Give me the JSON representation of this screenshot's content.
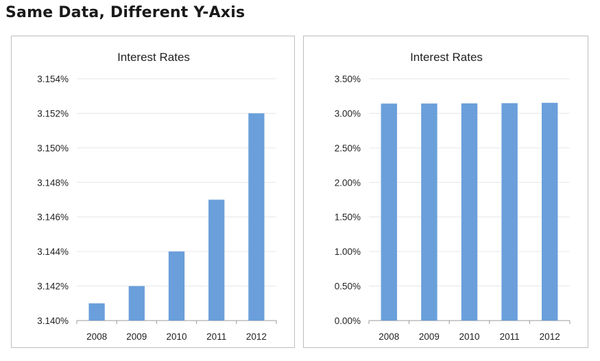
{
  "page": {
    "title": "Same Data, Different Y-Axis"
  },
  "chart_data": [
    {
      "type": "bar",
      "title": "Interest Rates",
      "categories": [
        "2008",
        "2009",
        "2010",
        "2011",
        "2012"
      ],
      "values": [
        3.141,
        3.142,
        3.144,
        3.147,
        3.152
      ],
      "ylim": [
        3.14,
        3.154
      ],
      "yticks": [
        3.14,
        3.142,
        3.144,
        3.146,
        3.148,
        3.15,
        3.152,
        3.154
      ],
      "ytick_labels": [
        "3.140%",
        "3.142%",
        "3.144%",
        "3.146%",
        "3.148%",
        "3.150%",
        "3.152%",
        "3.154%"
      ],
      "xlabel": "",
      "ylabel": "",
      "grid": true,
      "legend": "none",
      "bar_color": "#6a9fdb"
    },
    {
      "type": "bar",
      "title": "Interest Rates",
      "categories": [
        "2008",
        "2009",
        "2010",
        "2011",
        "2012"
      ],
      "values": [
        3.141,
        3.142,
        3.144,
        3.147,
        3.152
      ],
      "ylim": [
        0,
        3.5
      ],
      "yticks": [
        0,
        0.5,
        1,
        1.5,
        2,
        2.5,
        3,
        3.5
      ],
      "ytick_labels": [
        "0.00%",
        "0.50%",
        "1.00%",
        "1.50%",
        "2.00%",
        "2.50%",
        "3.00%",
        "3.50%"
      ],
      "xlabel": "",
      "ylabel": "",
      "grid": true,
      "legend": "none",
      "bar_color": "#6a9fdb"
    }
  ]
}
